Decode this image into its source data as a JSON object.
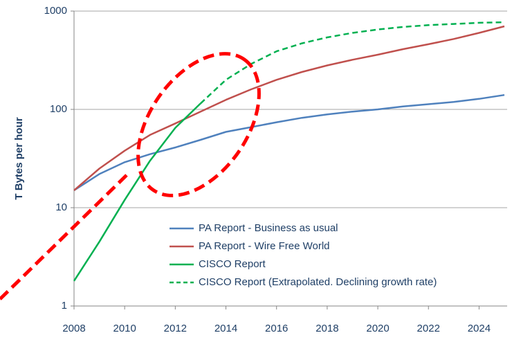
{
  "chart_data": {
    "type": "line",
    "y_label": "T Bytes per hour",
    "x": [
      2008,
      2009,
      2010,
      2011,
      2012,
      2013,
      2014,
      2015,
      2016,
      2017,
      2018,
      2019,
      2020,
      2021,
      2022,
      2023,
      2024,
      2025
    ],
    "series": [
      {
        "name": "PA Report - Business as usual",
        "color": "#4f81bd",
        "line_style": "solid",
        "values": [
          15,
          22,
          29,
          35,
          41,
          49,
          59,
          66,
          74,
          82,
          89,
          95,
          100,
          107,
          113,
          119,
          128,
          140
        ]
      },
      {
        "name": "PA Report - Wire Free World",
        "color": "#c0504d",
        "line_style": "solid",
        "values": [
          15,
          25,
          38,
          55,
          72,
          95,
          125,
          160,
          200,
          240,
          280,
          320,
          360,
          410,
          460,
          520,
          600,
          700
        ]
      },
      {
        "name": "CISCO Report",
        "color": "#00b050",
        "line_style": "solid",
        "values": [
          1.8,
          4.5,
          12,
          30,
          65,
          115,
          null,
          null,
          null,
          null,
          null,
          null,
          null,
          null,
          null,
          null,
          null,
          null
        ]
      },
      {
        "name": "CISCO Report (Extrapolated.  Declining growth rate)",
        "color": "#00b050",
        "line_style": "dashed",
        "values": [
          null,
          null,
          null,
          null,
          null,
          115,
          200,
          290,
          390,
          470,
          540,
          600,
          650,
          690,
          720,
          740,
          760,
          770
        ]
      }
    ],
    "xlim": [
      2008,
      2025
    ],
    "xticks": [
      2008,
      2010,
      2012,
      2014,
      2016,
      2018,
      2020,
      2022,
      2024
    ],
    "ylim": [
      1,
      1000
    ],
    "yticks": [
      1,
      10,
      100,
      1000
    ],
    "log_y": true,
    "grid": true,
    "legend": "lower right"
  }
}
